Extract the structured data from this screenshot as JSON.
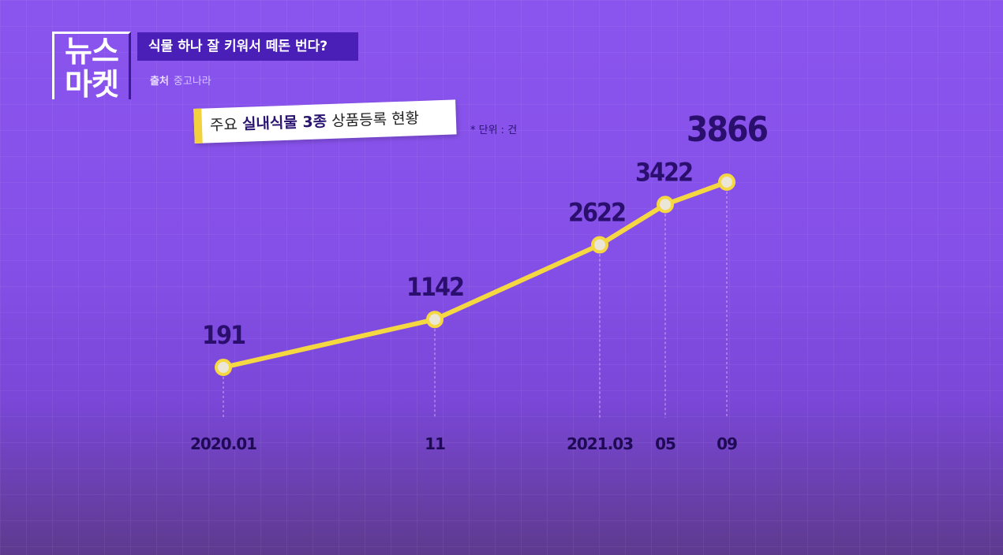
{
  "header": {
    "logo_line1": "뉴스",
    "logo_line2": "마켓",
    "title": "식물 하나 잘 키워서 떼돈 번다?",
    "source_label": "출처",
    "source_value": "중고나라"
  },
  "chart_header": {
    "subtitle_prefix": "주요",
    "subtitle_bold": "실내식물 3종",
    "subtitle_suffix": "상품등록 현황",
    "unit_note": "* 단위 : 건"
  },
  "colors": {
    "line": "#f5d742",
    "marker_fill": "#ece6d6",
    "value_text": "#2b0f6e"
  },
  "chart_data": {
    "type": "line",
    "categories": [
      "2020.01",
      "11",
      "2021.03",
      "05",
      "09"
    ],
    "values": [
      191,
      1142,
      2622,
      3422,
      3866
    ],
    "title": "주요 실내식물 3종 상품등록 현황",
    "unit": "건",
    "xlabel": "",
    "ylabel": "",
    "grid": false,
    "legend": "none"
  }
}
